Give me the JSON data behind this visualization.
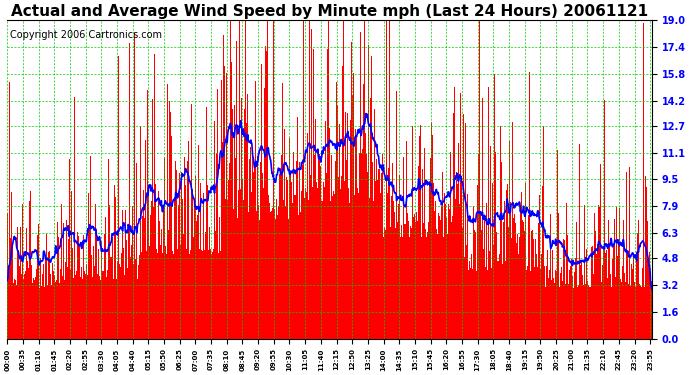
{
  "title": "Actual and Average Wind Speed by Minute mph (Last 24 Hours) 20061121",
  "copyright": "Copyright 2006 Cartronics.com",
  "yticks": [
    0.0,
    1.6,
    3.2,
    4.8,
    6.3,
    7.9,
    9.5,
    11.1,
    12.7,
    14.2,
    15.8,
    17.4,
    19.0
  ],
  "ylim": [
    0.0,
    19.0
  ],
  "bar_color": "#FF0000",
  "line_color": "#0000FF",
  "grid_color": "#00CC00",
  "background_color": "#FFFFFF",
  "title_fontsize": 11,
  "copyright_fontsize": 7,
  "n_minutes": 1440,
  "xtick_step": 35,
  "avg_window": 30
}
